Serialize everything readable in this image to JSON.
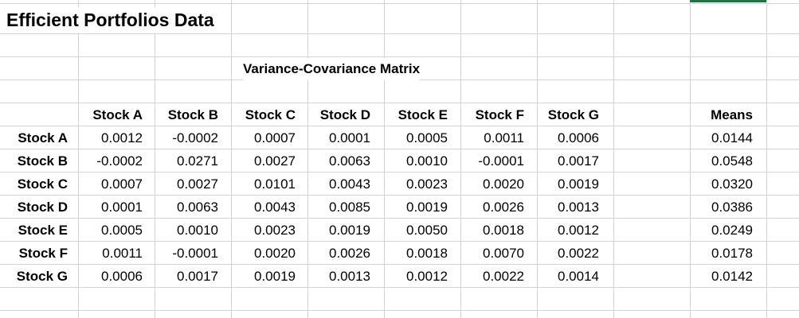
{
  "sheet": {
    "title": "Efficient Portfolios Data",
    "matrix_title": "Variance-Covariance Matrix",
    "column_headers": [
      "Stock A",
      "Stock B",
      "Stock C",
      "Stock D",
      "Stock E",
      "Stock F",
      "Stock G"
    ],
    "means_header": "Means",
    "rows": [
      {
        "label": "Stock A",
        "values": [
          "0.0012",
          "-0.0002",
          "0.0007",
          "0.0001",
          "0.0005",
          "0.0011",
          "0.0006"
        ],
        "mean": "0.0144"
      },
      {
        "label": "Stock B",
        "values": [
          "-0.0002",
          "0.0271",
          "0.0027",
          "0.0063",
          "0.0010",
          "-0.0001",
          "0.0017"
        ],
        "mean": "0.0548"
      },
      {
        "label": "Stock C",
        "values": [
          "0.0007",
          "0.0027",
          "0.0101",
          "0.0043",
          "0.0023",
          "0.0020",
          "0.0019"
        ],
        "mean": "0.0320"
      },
      {
        "label": "Stock D",
        "values": [
          "0.0001",
          "0.0063",
          "0.0043",
          "0.0085",
          "0.0019",
          "0.0026",
          "0.0013"
        ],
        "mean": "0.0386"
      },
      {
        "label": "Stock E",
        "values": [
          "0.0005",
          "0.0010",
          "0.0023",
          "0.0019",
          "0.0050",
          "0.0018",
          "0.0012"
        ],
        "mean": "0.0249"
      },
      {
        "label": "Stock F",
        "values": [
          "0.0011",
          "-0.0001",
          "0.0020",
          "0.0026",
          "0.0018",
          "0.0070",
          "0.0022"
        ],
        "mean": "0.0178"
      },
      {
        "label": "Stock G",
        "values": [
          "0.0006",
          "0.0017",
          "0.0019",
          "0.0013",
          "0.0012",
          "0.0022",
          "0.0014"
        ],
        "mean": "0.0142"
      }
    ]
  }
}
